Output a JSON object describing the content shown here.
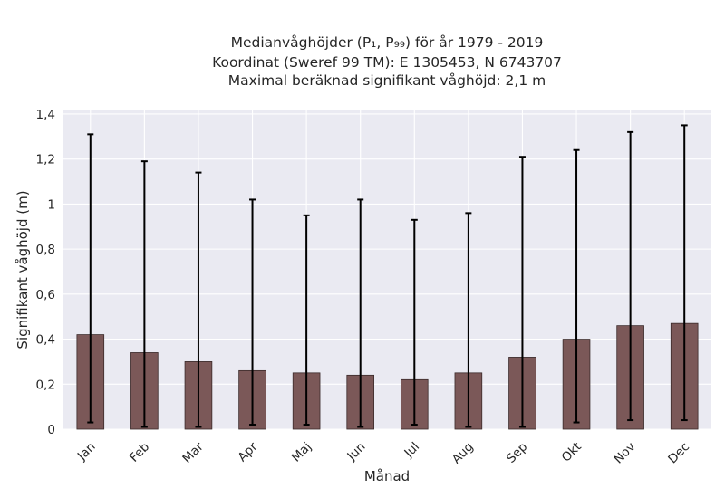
{
  "chart_data": {
    "type": "bar",
    "title_lines": [
      "Medianvåghöjder (P₁, P₉₉) för år 1979 - 2019",
      "Koordinat (Sweref 99 TM): E 1305453, N 6743707",
      "Maximal beräknad signifikant våghöjd: 2,1 m"
    ],
    "xlabel": "Månad",
    "ylabel": "Signifikant våghöjd (m)",
    "categories": [
      "Jan",
      "Feb",
      "Mar",
      "Apr",
      "Maj",
      "Jun",
      "Jul",
      "Aug",
      "Sep",
      "Okt",
      "Nov",
      "Dec"
    ],
    "values": [
      0.42,
      0.34,
      0.3,
      0.26,
      0.25,
      0.24,
      0.22,
      0.25,
      0.32,
      0.4,
      0.46,
      0.47
    ],
    "p1": [
      0.03,
      0.01,
      0.01,
      0.02,
      0.02,
      0.01,
      0.02,
      0.01,
      0.01,
      0.03,
      0.04,
      0.04
    ],
    "p99": [
      1.31,
      1.19,
      1.14,
      1.02,
      0.95,
      1.02,
      0.93,
      0.96,
      1.21,
      1.24,
      1.32,
      1.35
    ],
    "ylim": [
      0,
      1.42
    ],
    "yticks": [
      0,
      0.2,
      0.4,
      0.6,
      0.8,
      1,
      1.2,
      1.4
    ],
    "ytick_labels": [
      "0",
      "0,2",
      "0,4",
      "0,6",
      "0,8",
      "1",
      "1,2",
      "1,4"
    ],
    "grid": true,
    "colors": {
      "bar": "#7b5858",
      "bar_edge": "#3a2a2a",
      "errorbar": "#000000",
      "background": "#eaeaf2",
      "grid": "#ffffff",
      "text": "#262626"
    }
  }
}
